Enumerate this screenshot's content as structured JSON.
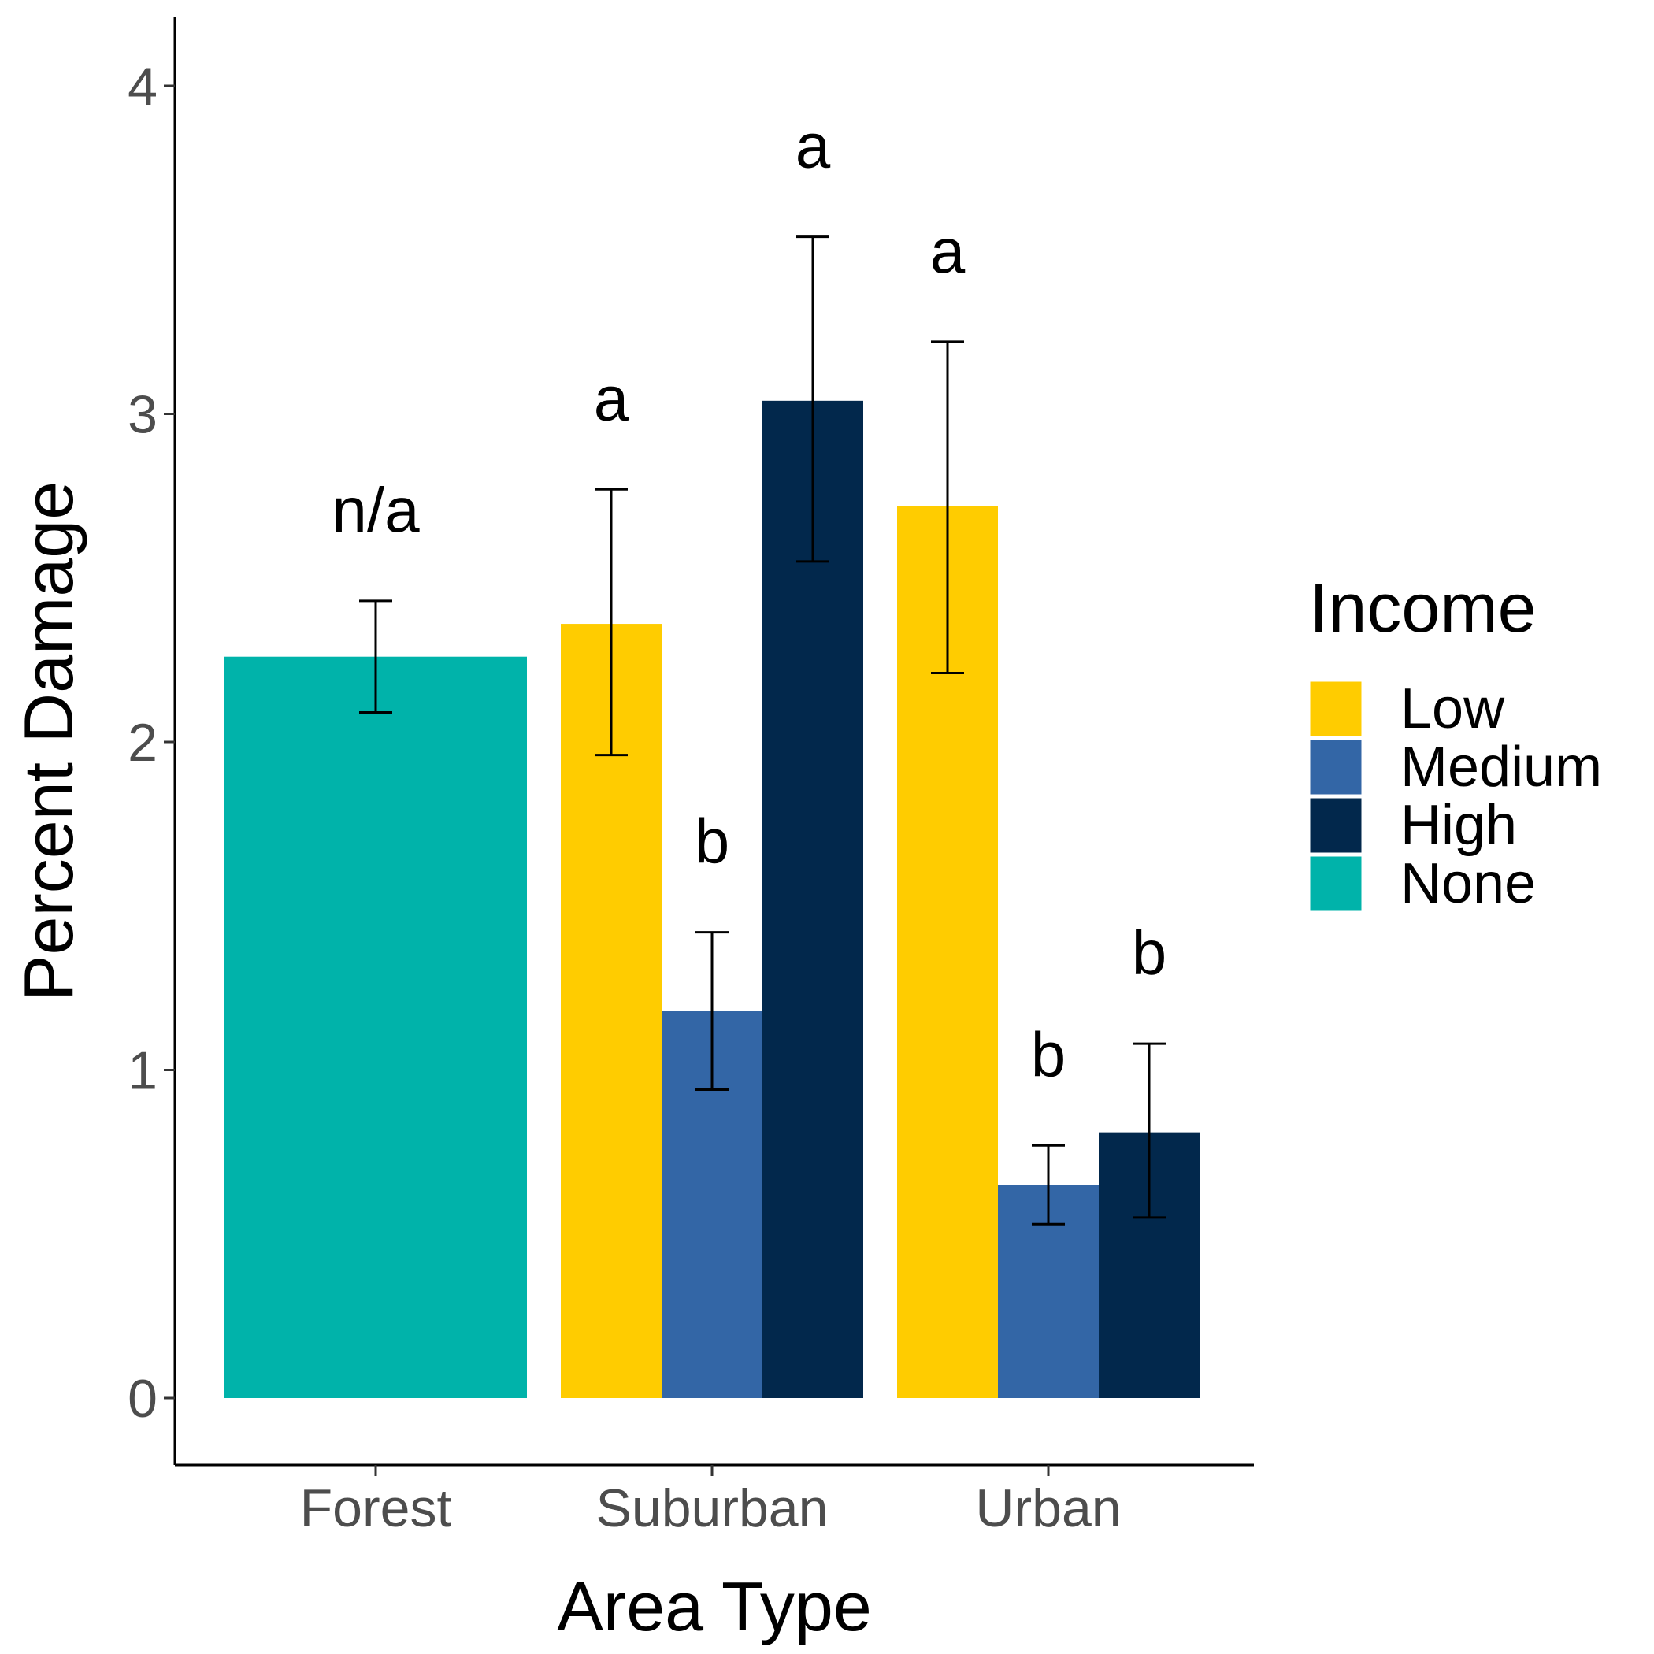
{
  "chart_data": {
    "type": "bar",
    "xlabel": "Area Type",
    "ylabel": "Percent Damage",
    "ylim": [
      -0.2,
      4.2
    ],
    "yticks": [
      0,
      1,
      2,
      3,
      4
    ],
    "categories": [
      "Forest",
      "Suburban",
      "Urban"
    ],
    "legend": {
      "title": "Income",
      "position": "right"
    },
    "series": [
      {
        "name": "Low",
        "color": "#FFCC00"
      },
      {
        "name": "Medium",
        "color": "#3366A6"
      },
      {
        "name": "High",
        "color": "#02284C"
      },
      {
        "name": "None",
        "color": "#00B3AA"
      }
    ],
    "bars": [
      {
        "category": "Forest",
        "group": "None",
        "value": 2.26,
        "error_low": 2.09,
        "error_high": 2.43,
        "sig_label": "n/a"
      },
      {
        "category": "Suburban",
        "group": "Low",
        "value": 2.36,
        "error_low": 1.96,
        "error_high": 2.77,
        "sig_label": "a"
      },
      {
        "category": "Suburban",
        "group": "Medium",
        "value": 1.18,
        "error_low": 0.94,
        "error_high": 1.42,
        "sig_label": "b"
      },
      {
        "category": "Suburban",
        "group": "High",
        "value": 3.04,
        "error_low": 2.55,
        "error_high": 3.54,
        "sig_label": "a"
      },
      {
        "category": "Urban",
        "group": "Low",
        "value": 2.72,
        "error_low": 2.21,
        "error_high": 3.22,
        "sig_label": "a"
      },
      {
        "category": "Urban",
        "group": "Medium",
        "value": 0.65,
        "error_low": 0.53,
        "error_high": 0.77,
        "sig_label": "b"
      },
      {
        "category": "Urban",
        "group": "High",
        "value": 0.81,
        "error_low": 0.55,
        "error_high": 1.08,
        "sig_label": "b"
      }
    ],
    "grid": false
  }
}
